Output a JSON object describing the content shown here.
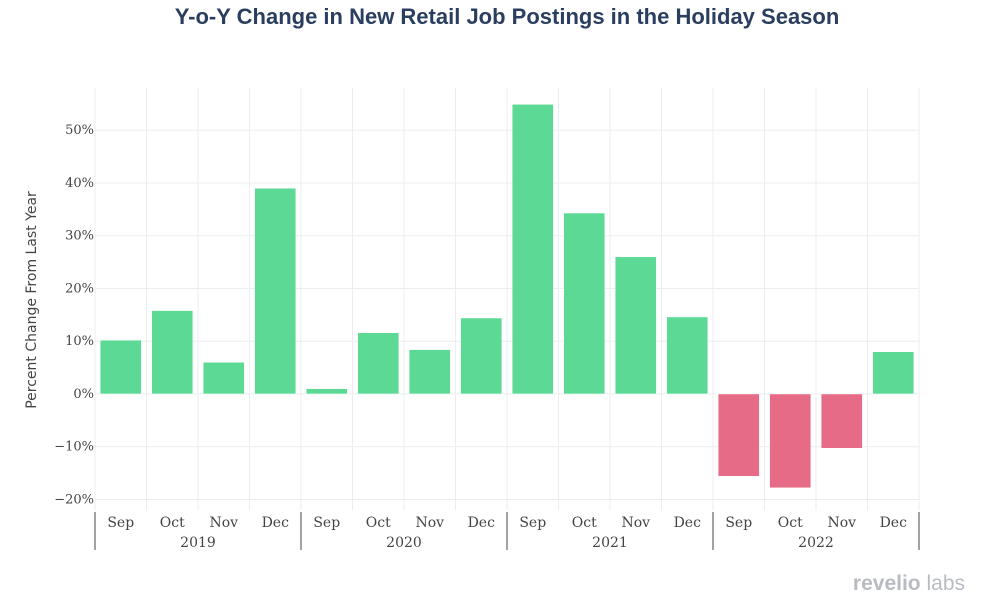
{
  "chart_data": {
    "type": "bar",
    "title": "Y-o-Y Change in New Retail Job Postings in the Holiday Season",
    "ylabel": "Percent Change From Last Year",
    "xlabel": "",
    "ylim": [
      -22,
      58
    ],
    "yticks": [
      -20,
      -10,
      0,
      10,
      20,
      30,
      40,
      50
    ],
    "ytick_labels": [
      "−20%",
      "−10%",
      "0%",
      "10%",
      "20%",
      "30%",
      "40%",
      "50%"
    ],
    "groups": [
      {
        "year": "2019",
        "months": [
          "Sep",
          "Oct",
          "Nov",
          "Dec"
        ],
        "values": [
          10.2,
          15.8,
          6.0,
          39.0
        ]
      },
      {
        "year": "2020",
        "months": [
          "Sep",
          "Oct",
          "Nov",
          "Dec"
        ],
        "values": [
          1.0,
          11.6,
          8.4,
          14.4
        ]
      },
      {
        "year": "2021",
        "months": [
          "Sep",
          "Oct",
          "Nov",
          "Dec"
        ],
        "values": [
          54.9,
          34.3,
          26.0,
          14.6
        ]
      },
      {
        "year": "2022",
        "months": [
          "Sep",
          "Oct",
          "Nov",
          "Dec"
        ],
        "values": [
          -15.6,
          -17.8,
          -10.3,
          8.0
        ]
      }
    ],
    "colors": {
      "positive": "#5cd994",
      "negative": "#e66b86",
      "grid": "#ebedf0",
      "axis": "#444444"
    },
    "grid": true
  },
  "logo": {
    "part1": "revelio",
    "part2": " labs"
  }
}
